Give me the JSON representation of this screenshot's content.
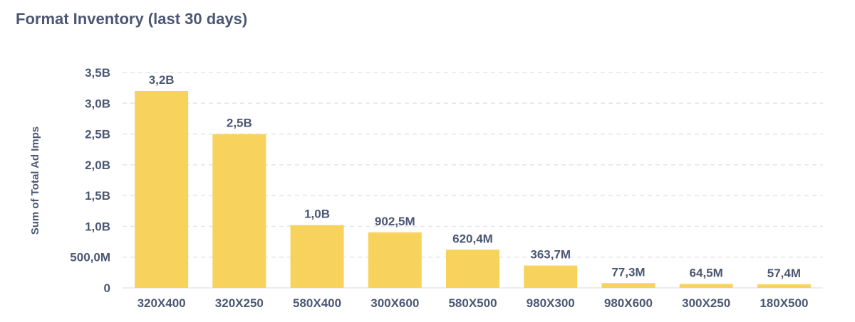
{
  "chart_data": {
    "type": "bar",
    "title": "Format Inventory (last 30 days)",
    "xlabel": "",
    "ylabel": "Sum of Total Ad Imps",
    "categories": [
      "320X400",
      "320X250",
      "580X400",
      "300X600",
      "580X500",
      "980X300",
      "980X600",
      "300X250",
      "180X500"
    ],
    "values": [
      3200000000,
      2500000000,
      1020000000,
      902500000,
      620400000,
      363700000,
      77300000,
      64500000,
      57400000
    ],
    "data_labels": [
      "3,2B",
      "2,5B",
      "1,0B",
      "902,5M",
      "620,4M",
      "363,7M",
      "77,3M",
      "64,5M",
      "57,4M"
    ],
    "ylim": [
      0,
      3500000000
    ],
    "yticks": [
      0,
      500000000,
      1000000000,
      1500000000,
      2000000000,
      2500000000,
      3000000000,
      3500000000
    ],
    "ytick_labels": [
      "0",
      "500,0M",
      "1,0B",
      "1,5B",
      "2,0B",
      "2,5B",
      "3,0B",
      "3,5B"
    ],
    "grid": true,
    "bar_color": "#F7D35E",
    "text_color": "#4C5773"
  }
}
